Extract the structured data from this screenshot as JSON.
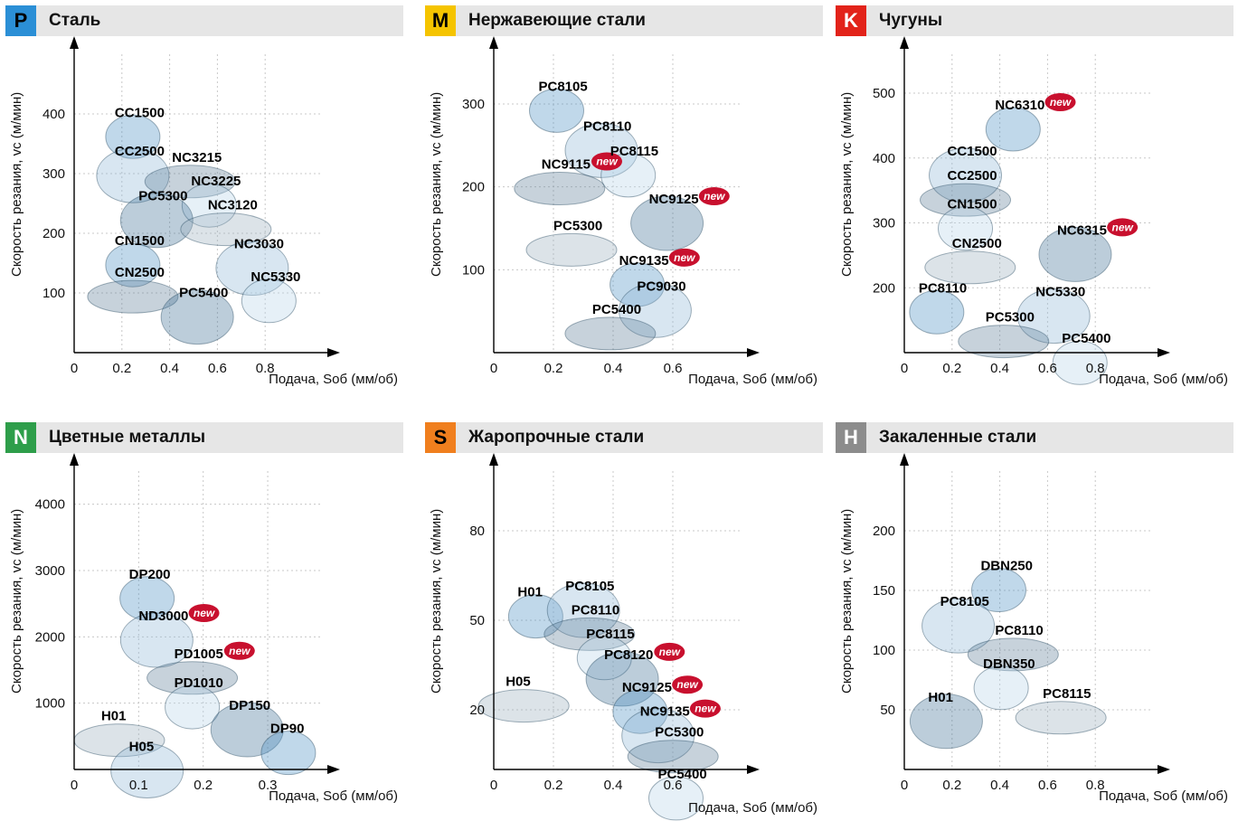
{
  "common": {
    "ylabel": "Скорость резания, vc (м/мин)",
    "xlabel": "Подача, Sоб (мм/об)",
    "new_text": "new"
  },
  "panels": [
    {
      "code": "P",
      "title": "Сталь",
      "color": "#2b8fd6"
    },
    {
      "code": "M",
      "title": "Нержавеющие стали",
      "color": "#f5c400"
    },
    {
      "code": "K",
      "title": "Чугуны",
      "color": "#e2231a"
    },
    {
      "code": "N",
      "title": "Цветные металлы",
      "color": "#2e9e4a"
    },
    {
      "code": "S",
      "title": "Жаропрочные стали",
      "color": "#f07f1e"
    },
    {
      "code": "H",
      "title": "Закаленные стали",
      "color": "#8c8c8c"
    }
  ],
  "chart_data": [
    {
      "type": "scatter",
      "title": "Сталь",
      "xlabel": "Подача, Sоб (мм/об)",
      "ylabel": "Скорость резания, vc (м/мин)",
      "xlim": [
        0,
        1.0
      ],
      "ylim": [
        0,
        500
      ],
      "xticks": [
        0,
        0.2,
        0.4,
        0.6,
        0.8
      ],
      "yticks": [
        100,
        200,
        300,
        400
      ],
      "grades": [
        {
          "name": "CC1500",
          "x": 0.17,
          "y": 395,
          "new": false
        },
        {
          "name": "CC2500",
          "x": 0.17,
          "y": 330,
          "new": false
        },
        {
          "name": "NC3215",
          "x": 0.41,
          "y": 320,
          "new": false
        },
        {
          "name": "NC3225",
          "x": 0.49,
          "y": 280,
          "new": false
        },
        {
          "name": "PC5300",
          "x": 0.27,
          "y": 255,
          "new": false
        },
        {
          "name": "NC3120",
          "x": 0.56,
          "y": 240,
          "new": false
        },
        {
          "name": "CN1500",
          "x": 0.17,
          "y": 180,
          "new": false
        },
        {
          "name": "NC3030",
          "x": 0.67,
          "y": 175,
          "new": false
        },
        {
          "name": "CN2500",
          "x": 0.17,
          "y": 127,
          "new": false
        },
        {
          "name": "NC5330",
          "x": 0.74,
          "y": 120,
          "new": false
        },
        {
          "name": "PC5400",
          "x": 0.44,
          "y": 93,
          "new": false
        }
      ]
    },
    {
      "type": "scatter",
      "title": "Нержавеющие стали",
      "xlabel": "Подача, Sоб (мм/об)",
      "ylabel": "Скорость резания, vc (м/мин)",
      "xlim": [
        0,
        0.8
      ],
      "ylim": [
        0,
        360
      ],
      "xticks": [
        0,
        0.2,
        0.4,
        0.6
      ],
      "yticks": [
        100,
        200,
        300
      ],
      "grades": [
        {
          "name": "PC8105",
          "x": 0.15,
          "y": 316,
          "new": false
        },
        {
          "name": "PC8110",
          "x": 0.3,
          "y": 268,
          "new": false
        },
        {
          "name": "NC9115",
          "x": 0.16,
          "y": 222,
          "new": true
        },
        {
          "name": "PC8115",
          "x": 0.39,
          "y": 238,
          "new": false
        },
        {
          "name": "NC9125",
          "x": 0.52,
          "y": 180,
          "new": true
        },
        {
          "name": "PC5300",
          "x": 0.2,
          "y": 148,
          "new": false
        },
        {
          "name": "NC9135",
          "x": 0.42,
          "y": 106,
          "new": true
        },
        {
          "name": "PC9030",
          "x": 0.48,
          "y": 75,
          "new": false
        },
        {
          "name": "PC5400",
          "x": 0.33,
          "y": 47,
          "new": false
        }
      ]
    },
    {
      "type": "scatter",
      "title": "Чугуны",
      "xlabel": "Подача, Sоб (мм/об)",
      "ylabel": "Скорость резания, vc (м/мин)",
      "xlim": [
        0,
        1.0
      ],
      "ylim": [
        100,
        560
      ],
      "xticks": [
        0,
        0.2,
        0.4,
        0.6,
        0.8
      ],
      "yticks": [
        200,
        300,
        400,
        500
      ],
      "grades": [
        {
          "name": "NC6310",
          "x": 0.38,
          "y": 475,
          "new": true
        },
        {
          "name": "CC1500",
          "x": 0.18,
          "y": 404,
          "new": false
        },
        {
          "name": "CC2500",
          "x": 0.18,
          "y": 366,
          "new": false
        },
        {
          "name": "CN1500",
          "x": 0.18,
          "y": 322,
          "new": false
        },
        {
          "name": "NC6315",
          "x": 0.64,
          "y": 282,
          "new": true
        },
        {
          "name": "CN2500",
          "x": 0.2,
          "y": 262,
          "new": false
        },
        {
          "name": "PC8110",
          "x": 0.06,
          "y": 193,
          "new": false
        },
        {
          "name": "NC5330",
          "x": 0.55,
          "y": 187,
          "new": false
        },
        {
          "name": "PC5300",
          "x": 0.34,
          "y": 148,
          "new": false
        },
        {
          "name": "PC5400",
          "x": 0.66,
          "y": 115,
          "new": false
        }
      ]
    },
    {
      "type": "scatter",
      "title": "Цветные металлы",
      "xlabel": "Подача, Sоб (мм/об)",
      "ylabel": "Скорость резания, vc (м/мин)",
      "xlim": [
        0,
        0.37
      ],
      "ylim": [
        0,
        4500
      ],
      "xticks": [
        0,
        0.1,
        0.2,
        0.3
      ],
      "yticks": [
        1000,
        2000,
        3000,
        4000
      ],
      "grades": [
        {
          "name": "DP200",
          "x": 0.085,
          "y": 2880,
          "new": false
        },
        {
          "name": "ND3000",
          "x": 0.1,
          "y": 2250,
          "new": true
        },
        {
          "name": "PD1005",
          "x": 0.155,
          "y": 1680,
          "new": true
        },
        {
          "name": "PD1010",
          "x": 0.155,
          "y": 1240,
          "new": false
        },
        {
          "name": "DP150",
          "x": 0.24,
          "y": 900,
          "new": false
        },
        {
          "name": "H01",
          "x": 0.042,
          "y": 740,
          "new": false
        },
        {
          "name": "DP90",
          "x": 0.304,
          "y": 550,
          "new": false
        },
        {
          "name": "H05",
          "x": 0.085,
          "y": 280,
          "new": false
        }
      ]
    },
    {
      "type": "scatter",
      "title": "Жаропрочные стали",
      "xlabel": "Подача, Sоб (мм/об)",
      "ylabel": "Скорость резания, vc (м/мин)",
      "xlim": [
        0,
        0.8
      ],
      "ylim": [
        0,
        100
      ],
      "xticks": [
        0,
        0.2,
        0.4,
        0.6
      ],
      "yticks": [
        20,
        50,
        80
      ],
      "grades": [
        {
          "name": "H01",
          "x": 0.08,
          "y": 58,
          "new": false
        },
        {
          "name": "PC8105",
          "x": 0.24,
          "y": 60,
          "new": false
        },
        {
          "name": "PC8110",
          "x": 0.26,
          "y": 52,
          "new": false
        },
        {
          "name": "PC8115",
          "x": 0.31,
          "y": 44,
          "new": false
        },
        {
          "name": "PC8120",
          "x": 0.37,
          "y": 37,
          "new": true
        },
        {
          "name": "H05",
          "x": 0.04,
          "y": 28,
          "new": false
        },
        {
          "name": "NC9125",
          "x": 0.43,
          "y": 26,
          "new": true
        },
        {
          "name": "NC9135",
          "x": 0.49,
          "y": 18,
          "new": true
        },
        {
          "name": "PC5300",
          "x": 0.54,
          "y": 11,
          "new": false
        },
        {
          "name": "PC5400",
          "x": 0.55,
          "y": -3,
          "new": false
        }
      ]
    },
    {
      "type": "scatter",
      "title": "Закаленные стали",
      "xlabel": "Подача, Sоб (мм/об)",
      "ylabel": "Скорость резания, vc (м/мин)",
      "xlim": [
        0,
        1.0
      ],
      "ylim": [
        0,
        250
      ],
      "xticks": [
        0,
        0.2,
        0.4,
        0.6,
        0.8
      ],
      "yticks": [
        50,
        100,
        150,
        200
      ],
      "grades": [
        {
          "name": "DBN250",
          "x": 0.32,
          "y": 167,
          "new": false
        },
        {
          "name": "PC8105",
          "x": 0.15,
          "y": 137,
          "new": false
        },
        {
          "name": "PC8110",
          "x": 0.38,
          "y": 113,
          "new": false
        },
        {
          "name": "DBN350",
          "x": 0.33,
          "y": 85,
          "new": false
        },
        {
          "name": "H01",
          "x": 0.1,
          "y": 57,
          "new": false
        },
        {
          "name": "PC8115",
          "x": 0.58,
          "y": 60,
          "new": false
        }
      ]
    }
  ]
}
